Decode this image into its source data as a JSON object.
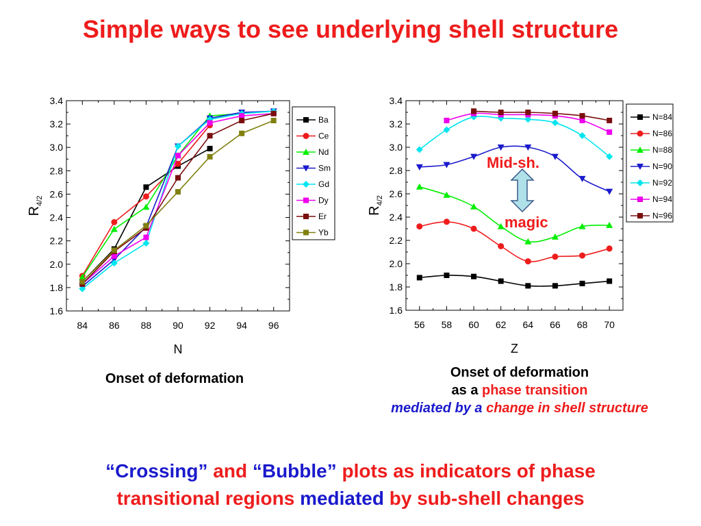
{
  "title": "Simple ways to see underlying shell structure",
  "chart_data": [
    {
      "type": "line",
      "x": [
        84,
        86,
        88,
        90,
        92,
        94,
        96
      ],
      "xlabel": "N",
      "ylabel_main": "R",
      "ylabel_sub": "4/2",
      "xlim": [
        83,
        97
      ],
      "ylim": [
        1.6,
        3.4
      ],
      "yticks": [
        "1.6",
        "1.8",
        "2.0",
        "2.2",
        "2.4",
        "2.6",
        "2.8",
        "3.0",
        "3.2",
        "3.4"
      ],
      "legend_position": "right",
      "series": [
        {
          "name": "Ba",
          "color": "#000000",
          "marker": "square",
          "values": [
            1.85,
            2.13,
            2.66,
            2.84,
            2.99,
            null,
            null
          ]
        },
        {
          "name": "Ce",
          "color": "#ee1c1c",
          "marker": "circle",
          "values": [
            1.9,
            2.36,
            2.58,
            2.86,
            3.19,
            null,
            null
          ]
        },
        {
          "name": "Nd",
          "color": "#00ee00",
          "marker": "triangle-up",
          "values": [
            1.89,
            2.3,
            2.49,
            2.93,
            3.27,
            3.29,
            3.31
          ]
        },
        {
          "name": "Sm",
          "color": "#1a1acc",
          "marker": "triangle-down",
          "values": [
            1.81,
            2.04,
            2.32,
            3.01,
            3.25,
            3.3,
            3.31
          ]
        },
        {
          "name": "Gd",
          "color": "#00e5ee",
          "marker": "diamond",
          "values": [
            1.79,
            2.01,
            2.18,
            3.01,
            3.24,
            3.29,
            3.31
          ]
        },
        {
          "name": "Dy",
          "color": "#ee00ee",
          "marker": "square",
          "values": [
            1.83,
            2.07,
            2.23,
            2.93,
            3.21,
            3.27,
            3.29
          ]
        },
        {
          "name": "Er",
          "color": "#7a0e0e",
          "marker": "square",
          "values": [
            1.83,
            2.11,
            2.31,
            2.74,
            3.1,
            3.23,
            3.29
          ]
        },
        {
          "name": "Yb",
          "color": "#808010",
          "marker": "square",
          "values": [
            1.85,
            2.12,
            2.33,
            2.62,
            2.92,
            3.12,
            3.23
          ]
        }
      ]
    },
    {
      "type": "line",
      "x": [
        56,
        58,
        60,
        62,
        64,
        66,
        68,
        70
      ],
      "xlabel": "Z",
      "ylabel_main": "R",
      "ylabel_sub": "4/2",
      "xlim": [
        55,
        71
      ],
      "ylim": [
        1.6,
        3.4
      ],
      "yticks": [
        "1.6",
        "1.8",
        "2.0",
        "2.2",
        "2.4",
        "2.6",
        "2.8",
        "3.0",
        "3.2",
        "3.4"
      ],
      "legend_position": "right",
      "series": [
        {
          "name": "N=84",
          "color": "#000000",
          "marker": "square",
          "values": [
            1.88,
            1.9,
            1.89,
            1.85,
            1.81,
            1.81,
            1.83,
            1.85
          ]
        },
        {
          "name": "N=86",
          "color": "#ee1c1c",
          "marker": "circle",
          "values": [
            2.32,
            2.36,
            2.3,
            2.15,
            2.02,
            2.06,
            2.07,
            2.13
          ]
        },
        {
          "name": "N=88",
          "color": "#00ee00",
          "marker": "triangle-up",
          "values": [
            2.66,
            2.59,
            2.49,
            2.32,
            2.19,
            2.23,
            2.32,
            2.33
          ]
        },
        {
          "name": "N=90",
          "color": "#1a1acc",
          "marker": "triangle-down",
          "values": [
            2.83,
            2.85,
            2.92,
            3.0,
            3.0,
            2.92,
            2.73,
            2.62
          ]
        },
        {
          "name": "N=92",
          "color": "#00e5ee",
          "marker": "diamond",
          "values": [
            2.98,
            3.15,
            3.26,
            3.25,
            3.24,
            3.21,
            3.1,
            2.92
          ]
        },
        {
          "name": "N=94",
          "color": "#ee00ee",
          "marker": "square",
          "values": [
            null,
            3.23,
            3.29,
            3.28,
            3.28,
            3.27,
            3.23,
            3.13
          ]
        },
        {
          "name": "N=96",
          "color": "#7a0e0e",
          "marker": "square",
          "values": [
            null,
            null,
            3.31,
            3.3,
            3.3,
            3.29,
            3.27,
            3.23
          ]
        }
      ]
    }
  ],
  "annotations": {
    "mid_shell": "Mid-sh.",
    "magic": "magic"
  },
  "captions": {
    "left": "Onset of deformation",
    "right_line1": "Onset of deformation",
    "right_line2_a": "as a ",
    "right_line2_b": "phase transition",
    "right_line3_a": "mediated by a ",
    "right_line3_b": "change in shell structure"
  },
  "bottom_text": {
    "w1": "“Crossing”",
    "w2": " and ",
    "w3": "“Bubble”",
    "w4": " plots as indicators of phase",
    "w5": "transitional regions ",
    "w6": "mediated",
    "w7": " by sub-shell changes"
  }
}
